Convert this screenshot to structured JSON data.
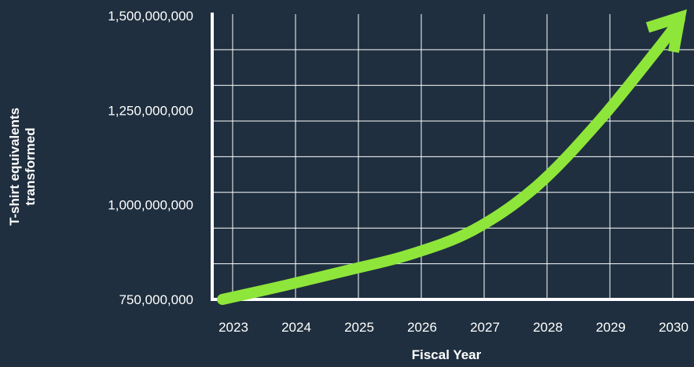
{
  "chart_data": {
    "type": "line",
    "xlabel": "Fiscal Year",
    "ylabel": [
      "T-shirt equivalents",
      "transformed"
    ],
    "x": [
      2023,
      2024,
      2025,
      2026,
      2027,
      2028,
      2029,
      2030
    ],
    "x_tick_labels": [
      "2023",
      "2024",
      "2025",
      "2026",
      "2027",
      "2028",
      "2029",
      "2030"
    ],
    "y_ticks": [
      750000000,
      1000000000,
      1250000000,
      1500000000
    ],
    "y_tick_labels": [
      "750,000,000",
      "1,000,000,000",
      "1,250,000,000",
      "1,500,000,000"
    ],
    "ylim": [
      750000000,
      1500000000
    ],
    "xlim": [
      2023,
      2030.3
    ],
    "series": [
      {
        "values": [
          {
            "x": 2023,
            "y": 750000000
          },
          {
            "x": 2024,
            "y": 787000000
          },
          {
            "x": 2025,
            "y": 827000000
          },
          {
            "x": 2026,
            "y": 869000000
          },
          {
            "x": 2027,
            "y": 933000000
          },
          {
            "x": 2028,
            "y": 1047000000
          },
          {
            "x": 2029,
            "y": 1219000000
          },
          {
            "x": 2030,
            "y": 1423000000
          },
          {
            "x": 2030.3,
            "y": 1490000000
          }
        ]
      }
    ],
    "grid": true,
    "colors": {
      "background": "#1f2f3f",
      "line": "#8ee63a",
      "grid": "#ffffff",
      "axis": "#ffffff",
      "text": "#ffffff"
    }
  }
}
